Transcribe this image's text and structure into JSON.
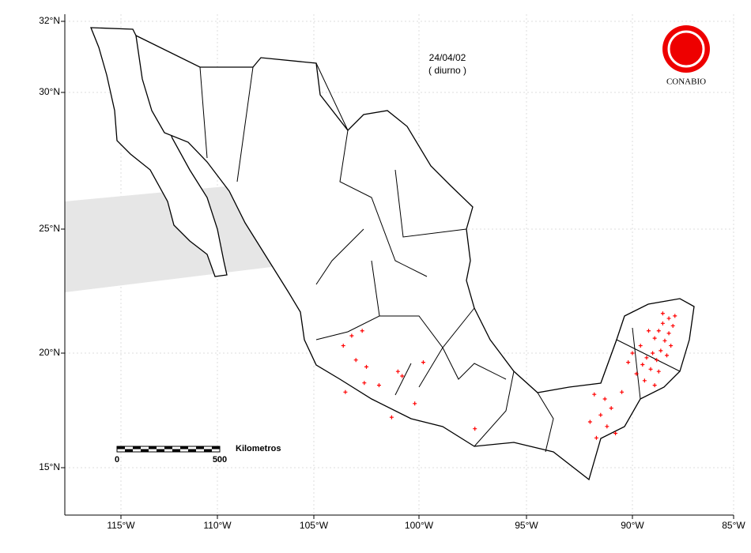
{
  "map": {
    "date": "24/04/02",
    "period": "( diurno )",
    "logo": "CONABIO",
    "scale_bar": {
      "label": "Kilometros",
      "ticks": [
        0,
        500
      ]
    },
    "xlim": [
      -117.9,
      -85
    ],
    "ylim": [
      12.9,
      32.2
    ],
    "xticks": [
      {
        "value": -115,
        "label": "115°W"
      },
      {
        "value": -110,
        "label": "110°W"
      },
      {
        "value": -105,
        "label": "105°W"
      },
      {
        "value": -100,
        "label": "100°W"
      },
      {
        "value": -95,
        "label": "95°W"
      },
      {
        "value": -90,
        "label": "90°W"
      },
      {
        "value": -85,
        "label": "85°W"
      }
    ],
    "yticks": [
      {
        "value": 15,
        "label": "15°N"
      },
      {
        "value": 20,
        "label": "20°N"
      },
      {
        "value": 25,
        "label": "25°N"
      },
      {
        "value": 30,
        "label": "30°N"
      },
      {
        "value": 32,
        "label": "32°N"
      }
    ],
    "grid": true,
    "hotspots": {
      "color": "#ff0000",
      "lon": [
        -88.5,
        -88.2,
        -88.0,
        -88.7,
        -88.9,
        -88.4,
        -88.1,
        -88.6,
        -89.0,
        -89.3,
        -88.8,
        -88.3,
        -89.5,
        -89.1,
        -88.7,
        -89.8,
        -89.4,
        -88.9,
        -90.2,
        -89.6,
        -88.2,
        -87.9,
        -88.5,
        -89.2,
        -90.0,
        -91.8,
        -91.3,
        -91.0,
        -91.5,
        -92.0,
        -91.2,
        -90.8,
        -91.7,
        -90.5,
        -103.6,
        -103.2,
        -102.7,
        -103.0,
        -102.5,
        -101.0,
        -100.8,
        -101.9,
        -102.6,
        -100.2,
        -101.3,
        -99.8,
        -97.4,
        -103.5
      ],
      "lat": [
        21.2,
        21.4,
        21.1,
        20.9,
        20.6,
        20.5,
        20.3,
        20.1,
        20.0,
        19.8,
        19.7,
        19.9,
        19.5,
        19.3,
        19.2,
        19.1,
        18.8,
        18.6,
        19.6,
        20.3,
        20.8,
        21.5,
        21.6,
        20.9,
        20.0,
        18.2,
        18.0,
        17.6,
        17.3,
        17.0,
        16.8,
        16.5,
        16.3,
        18.3,
        20.3,
        20.7,
        20.9,
        19.7,
        19.4,
        19.2,
        19.0,
        18.6,
        18.7,
        17.8,
        17.2,
        19.6,
        16.7,
        18.3
      ]
    }
  }
}
